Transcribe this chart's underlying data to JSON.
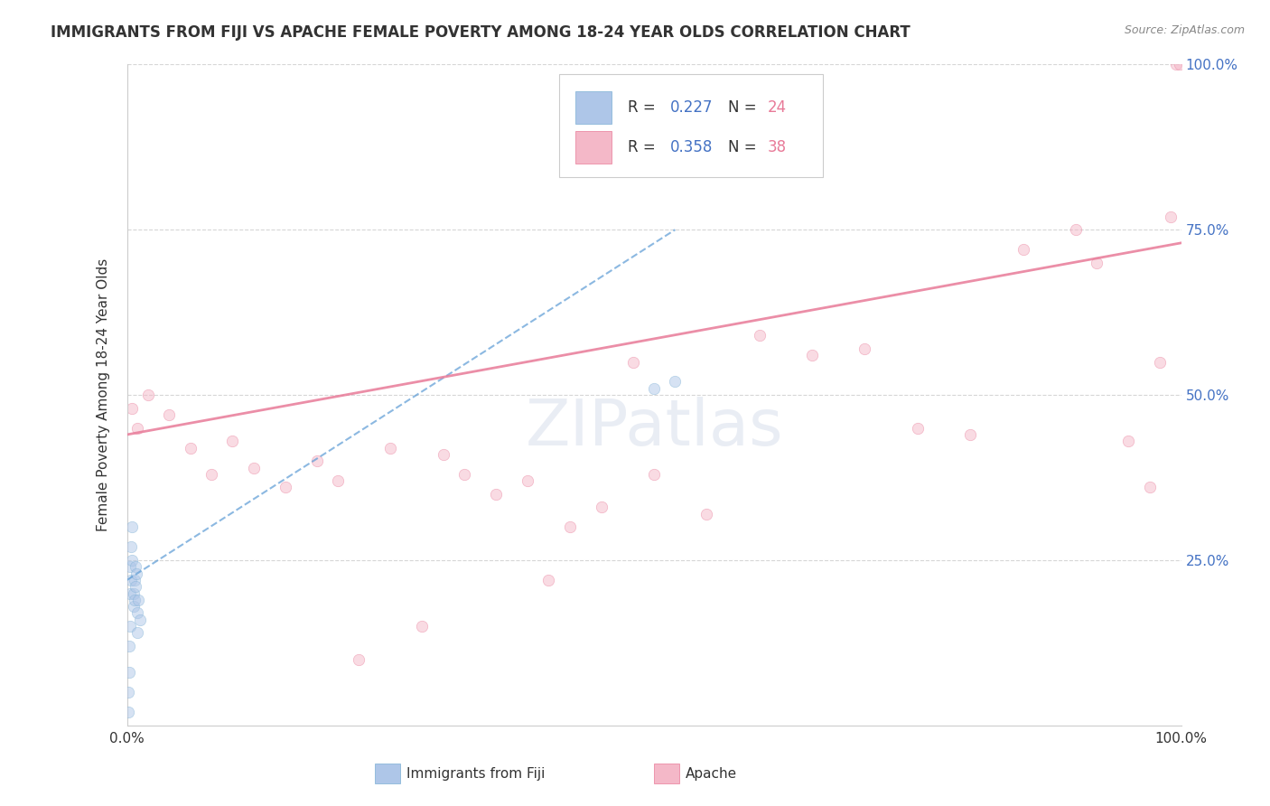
{
  "title": "IMMIGRANTS FROM FIJI VS APACHE FEMALE POVERTY AMONG 18-24 YEAR OLDS CORRELATION CHART",
  "source": "Source: ZipAtlas.com",
  "ylabel": "Female Poverty Among 18-24 Year Olds",
  "xlim": [
    0.0,
    1.0
  ],
  "ylim": [
    0.0,
    1.0
  ],
  "ytick_positions": [
    0.25,
    0.5,
    0.75,
    1.0
  ],
  "ytick_labels": [
    "25.0%",
    "50.0%",
    "75.0%",
    "100.0%"
  ],
  "grid_color": "#cccccc",
  "background_color": "#ffffff",
  "fiji_color": "#aec6e8",
  "fiji_color_dark": "#7bafd4",
  "apache_color": "#f4b8c8",
  "apache_color_dark": "#e87a98",
  "fiji_scatter_x": [
    0.001,
    0.001,
    0.002,
    0.002,
    0.003,
    0.003,
    0.003,
    0.004,
    0.004,
    0.005,
    0.005,
    0.006,
    0.006,
    0.007,
    0.007,
    0.008,
    0.008,
    0.009,
    0.01,
    0.01,
    0.011,
    0.012,
    0.5,
    0.52
  ],
  "fiji_scatter_y": [
    0.02,
    0.05,
    0.08,
    0.12,
    0.15,
    0.2,
    0.24,
    0.27,
    0.22,
    0.3,
    0.25,
    0.2,
    0.18,
    0.22,
    0.19,
    0.24,
    0.21,
    0.23,
    0.17,
    0.14,
    0.19,
    0.16,
    0.51,
    0.52
  ],
  "apache_scatter_x": [
    0.005,
    0.01,
    0.02,
    0.04,
    0.06,
    0.08,
    0.1,
    0.12,
    0.15,
    0.18,
    0.2,
    0.22,
    0.25,
    0.28,
    0.3,
    0.32,
    0.35,
    0.38,
    0.4,
    0.42,
    0.45,
    0.48,
    0.5,
    0.55,
    0.6,
    0.65,
    0.7,
    0.75,
    0.8,
    0.85,
    0.9,
    0.92,
    0.95,
    0.97,
    0.98,
    0.99,
    0.995,
    0.999
  ],
  "apache_scatter_y": [
    0.48,
    0.45,
    0.5,
    0.47,
    0.42,
    0.38,
    0.43,
    0.39,
    0.36,
    0.4,
    0.37,
    0.1,
    0.42,
    0.15,
    0.41,
    0.38,
    0.35,
    0.37,
    0.22,
    0.3,
    0.33,
    0.55,
    0.38,
    0.32,
    0.59,
    0.56,
    0.57,
    0.45,
    0.44,
    0.72,
    0.75,
    0.7,
    0.43,
    0.36,
    0.55,
    0.77,
    1.0,
    1.0
  ],
  "fiji_trendline_x": [
    0.0,
    0.52
  ],
  "fiji_trendline_y": [
    0.22,
    0.75
  ],
  "apache_trendline_x": [
    0.0,
    1.0
  ],
  "apache_trendline_y": [
    0.44,
    0.73
  ],
  "marker_size": 80,
  "marker_alpha": 0.5
}
